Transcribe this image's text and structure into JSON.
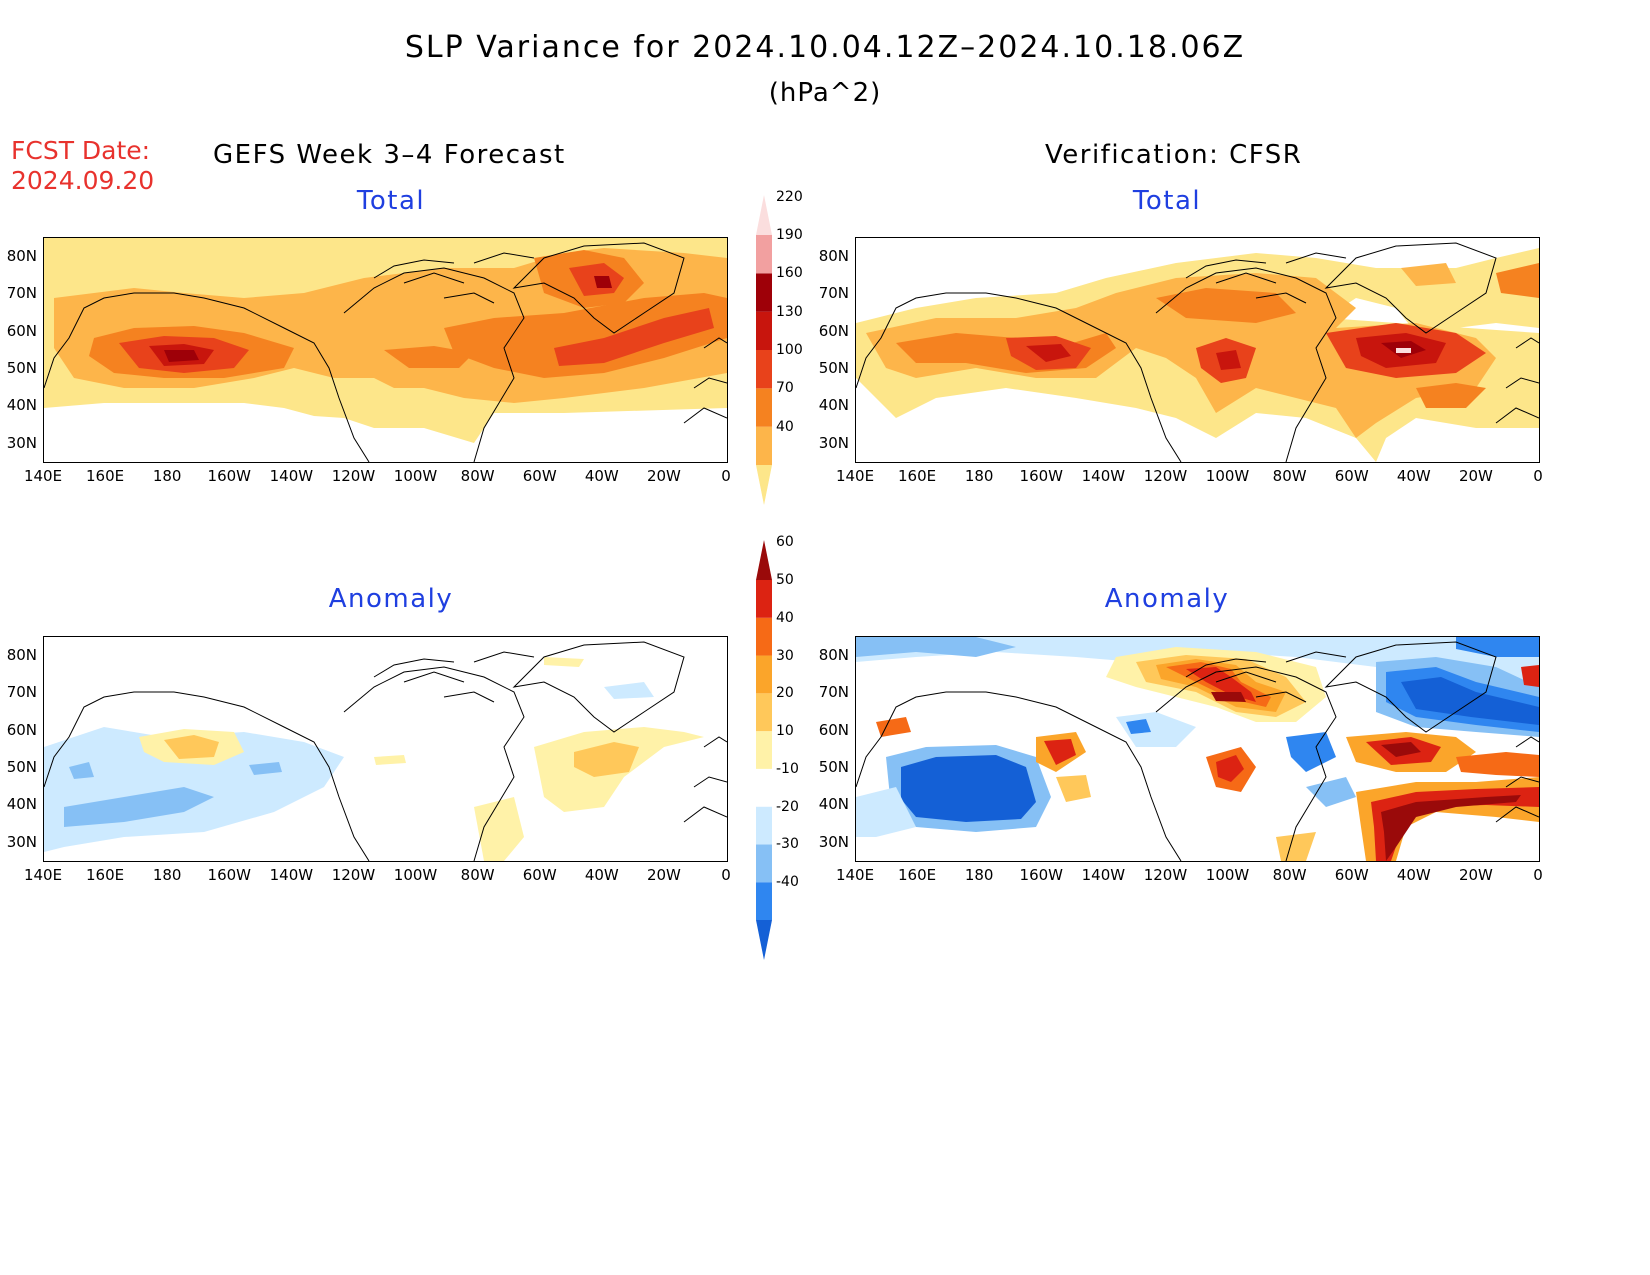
{
  "figure": {
    "title": "SLP Variance for 2024.10.04.12Z–2024.10.18.06Z",
    "units": "(hPa^2)",
    "fcst_label": "FCST Date:",
    "fcst_date": "2024.09.20"
  },
  "columns": {
    "left": "GEFS Week 3–4 Forecast",
    "right": "Verification: CFSR"
  },
  "panels": {
    "total": "Total",
    "anomaly": "Anomaly"
  },
  "axes": {
    "lat_labels": [
      "80N",
      "70N",
      "60N",
      "50N",
      "40N",
      "30N"
    ],
    "lon_labels": [
      "140E",
      "160E",
      "180",
      "160W",
      "140W",
      "120W",
      "100W",
      "80W",
      "60W",
      "40W",
      "20W",
      "0"
    ]
  },
  "colorbars": {
    "total": {
      "levels": [
        "40",
        "70",
        "100",
        "130",
        "160",
        "190",
        "220"
      ],
      "colors": [
        "#fde68a",
        "#fdb54a",
        "#f58220",
        "#e8421b",
        "#c8150d",
        "#9e0008",
        "#f2a0a0",
        "#fbdede"
      ]
    },
    "anomaly": {
      "levels": [
        "-40",
        "-30",
        "-20",
        "-10",
        "10",
        "20",
        "30",
        "40",
        "50",
        "60"
      ],
      "colors": [
        "#1460d6",
        "#2f86f0",
        "#86c0f5",
        "#cdeaff",
        "#ffffff",
        "#fff2a8",
        "#ffc85a",
        "#fba52a",
        "#f66a16",
        "#dc2312",
        "#9a0a0a"
      ]
    }
  }
}
